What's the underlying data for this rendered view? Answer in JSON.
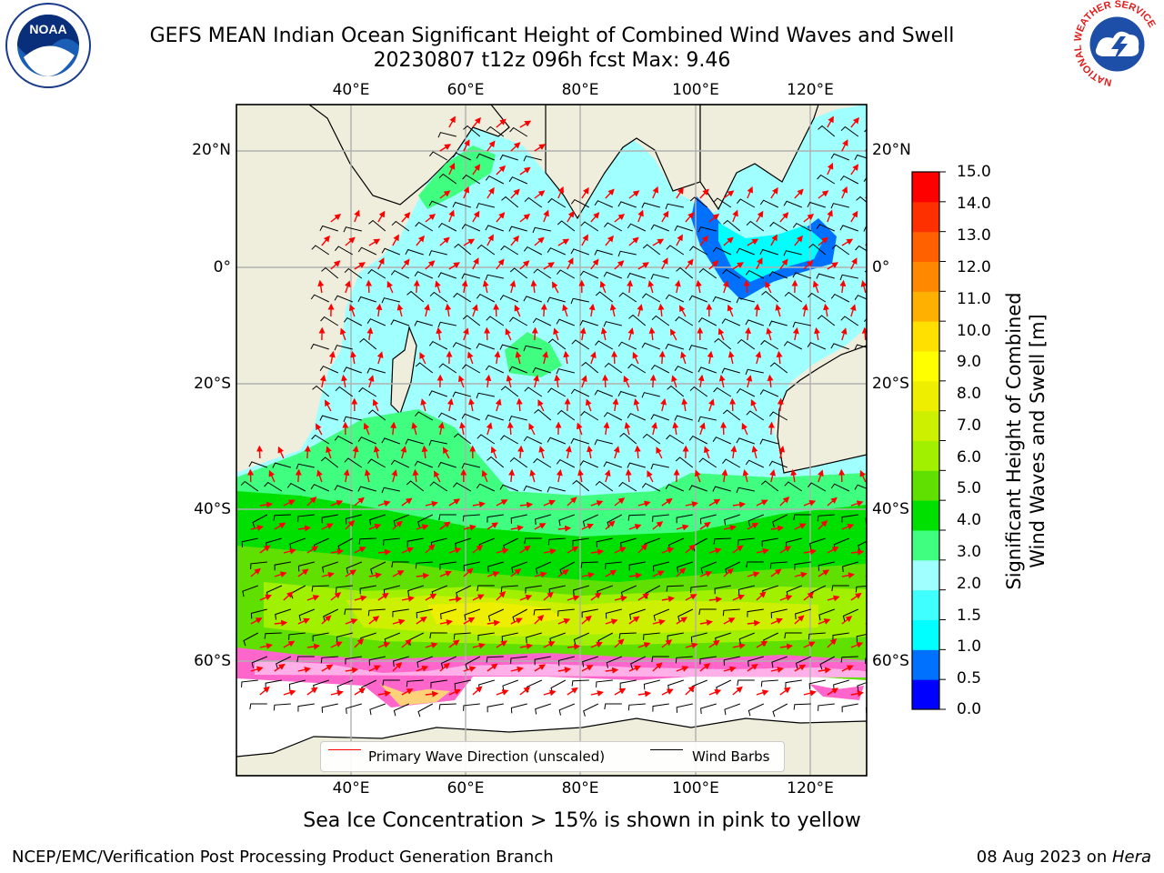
{
  "header": {
    "title_line1": "GEFS MEAN Indian Ocean Significant Height of Combined Wind Waves and Swell",
    "title_line2": "20230807 t12z 096h fcst   Max: 9.46"
  },
  "logos": {
    "left": "NOAA",
    "right": "NATIONAL WEATHER SERVICE"
  },
  "map": {
    "top_lon_labels": [
      "40°E",
      "60°E",
      "80°E",
      "100°E",
      "120°E"
    ],
    "bottom_lon_labels": [
      "40°E",
      "60°E",
      "80°E",
      "100°E",
      "120°E"
    ],
    "left_lat_labels": [
      "20°N",
      "0°",
      "20°S",
      "40°S",
      "60°S"
    ],
    "right_lat_labels": [
      "20°N",
      "0°",
      "20°S",
      "40°S",
      "60°S"
    ],
    "colors": {
      "land": "#efeedd",
      "open_water": "#ffffff",
      "wave_arrows": "#ff0000",
      "wind_barbs": "#000000",
      "grid": "#b0b0b0"
    }
  },
  "legend": {
    "wave_direction": "Primary Wave Direction (unscaled)",
    "wind_barbs": "Wind Barbs"
  },
  "colorbar": {
    "title_line1": "Significant Height of Combined",
    "title_line2": "Wind Waves and Swell [m]",
    "ticks": [
      "15.0",
      "14.0",
      "13.0",
      "12.0",
      "11.0",
      "10.0",
      "9.0",
      "8.0",
      "7.0",
      "6.0",
      "5.0",
      "4.0",
      "3.0",
      "2.0",
      "1.5",
      "1.0",
      "0.5",
      "0.0"
    ],
    "colors": [
      "#0000ff",
      "#0070ff",
      "#00ffff",
      "#40ffff",
      "#a0ffff",
      "#40ff80",
      "#00e000",
      "#60e000",
      "#a0f000",
      "#ccf000",
      "#eeee00",
      "#ffff00",
      "#ffe000",
      "#ffb000",
      "#ff8800",
      "#ff6000",
      "#ff3000",
      "#ff0000"
    ]
  },
  "caption": "Sea Ice Concentration > 15% is shown in pink to yellow",
  "footer": {
    "left": "NCEP/EMC/Verification Post Processing Product Generation Branch",
    "right_prefix": "08 Aug 2023 on ",
    "right_host": "Hera"
  }
}
